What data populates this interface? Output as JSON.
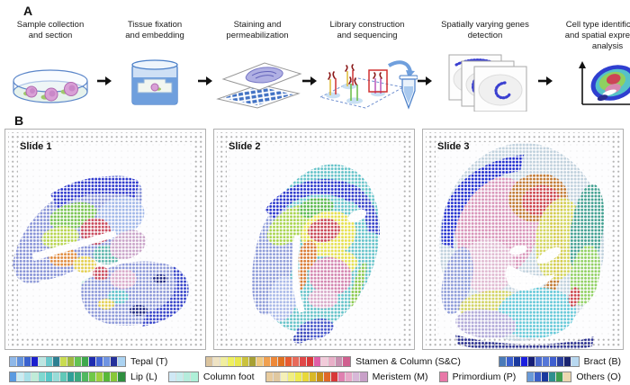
{
  "panel_a": {
    "label": "A",
    "steps": [
      {
        "caption": "Sample collection\nand section",
        "icon": "petri-dish-icon"
      },
      {
        "caption": "Tissue fixation\nand embedding",
        "icon": "embedding-cassette-icon"
      },
      {
        "caption": "Staining and\npermeabilization",
        "icon": "slide-staining-icon"
      },
      {
        "caption": "Library construction\nand sequencing",
        "icon": "library-tube-icon"
      },
      {
        "caption": "Spatially varying genes\ndetection",
        "icon": "gene-maps-icon"
      },
      {
        "caption": "Cell type identification\nand spatial expression\nanalysis",
        "icon": "spatial-analysis-icon"
      }
    ]
  },
  "panel_b": {
    "label": "B",
    "slides": [
      {
        "label": "Slide 1"
      },
      {
        "label": "Slide 2"
      },
      {
        "label": "Slide 3"
      }
    ]
  },
  "legend": {
    "rows": [
      [
        {
          "label": "Tepal (T)",
          "colors": [
            "#8FB8E8",
            "#6292DD",
            "#3A62CF",
            "#1B1FCE",
            "#BCE6E2",
            "#6AC8CC",
            "#2E8092",
            "#C9DC50",
            "#9FB93F",
            "#62C353",
            "#3FA94C",
            "#1E2BB0",
            "#4467D8",
            "#6F94E2",
            "#24309B",
            "#ABD3F2"
          ]
        },
        {
          "label": "Stamen & Column (S&C)",
          "colors": [
            "#DBC49E",
            "#EFE3C3",
            "#F1EE9E",
            "#EFF05E",
            "#E9E84D",
            "#CBC23D",
            "#A7A033",
            "#F0C87F",
            "#F0A050",
            "#EE8838",
            "#E07020",
            "#E85A30",
            "#E86A5A",
            "#E04848",
            "#D83838",
            "#DF5FA8",
            "#F2CBDA",
            "#E9AFC8",
            "#C890B0",
            "#D0608F"
          ]
        },
        {
          "label": "Bract (B)",
          "colors": [
            "#4A7AB8",
            "#3A5FD0",
            "#1B3A9E",
            "#1A1EE0",
            "#161F78",
            "#4A6AD0",
            "#5577D8",
            "#3F5FD0",
            "#2A3FA0",
            "#1A2470",
            "#B8D8F0"
          ]
        }
      ],
      [
        {
          "label": "Lip (L)",
          "colors": [
            "#5A9AE0",
            "#C9ECF2",
            "#A8E0E8",
            "#C0ECD8",
            "#7FD8D0",
            "#58C8C8",
            "#98DCD8",
            "#60C8B8",
            "#2F9F98",
            "#3AAA80",
            "#50B860",
            "#70C848",
            "#A0D040",
            "#58B838",
            "#88C838",
            "#2F8F3F"
          ]
        },
        {
          "label": "Column foot",
          "colors": [
            "#CFE8F5",
            "#C5ECEC",
            "#B5ECDC",
            "#AFF0D8"
          ]
        },
        {
          "label": "Meristem (M)",
          "colors": [
            "#E8CC9E",
            "#E0C8A0",
            "#F5F0B8",
            "#F0EE80",
            "#EEEA50",
            "#E8D83A",
            "#D8B828",
            "#C89018",
            "#E06828",
            "#D83838",
            "#E080B0",
            "#E8A8C8",
            "#D8B8D8",
            "#C8A0C8"
          ]
        },
        {
          "label": "Primordium (P)",
          "colors": [
            "#E878A8"
          ]
        },
        {
          "label": "Others (O)",
          "colors": [
            "#6A9AD8",
            "#3A5FC8",
            "#1A3A9E",
            "#2F8F8F",
            "#3F9F4F",
            "#ECD8B0"
          ]
        }
      ]
    ]
  }
}
